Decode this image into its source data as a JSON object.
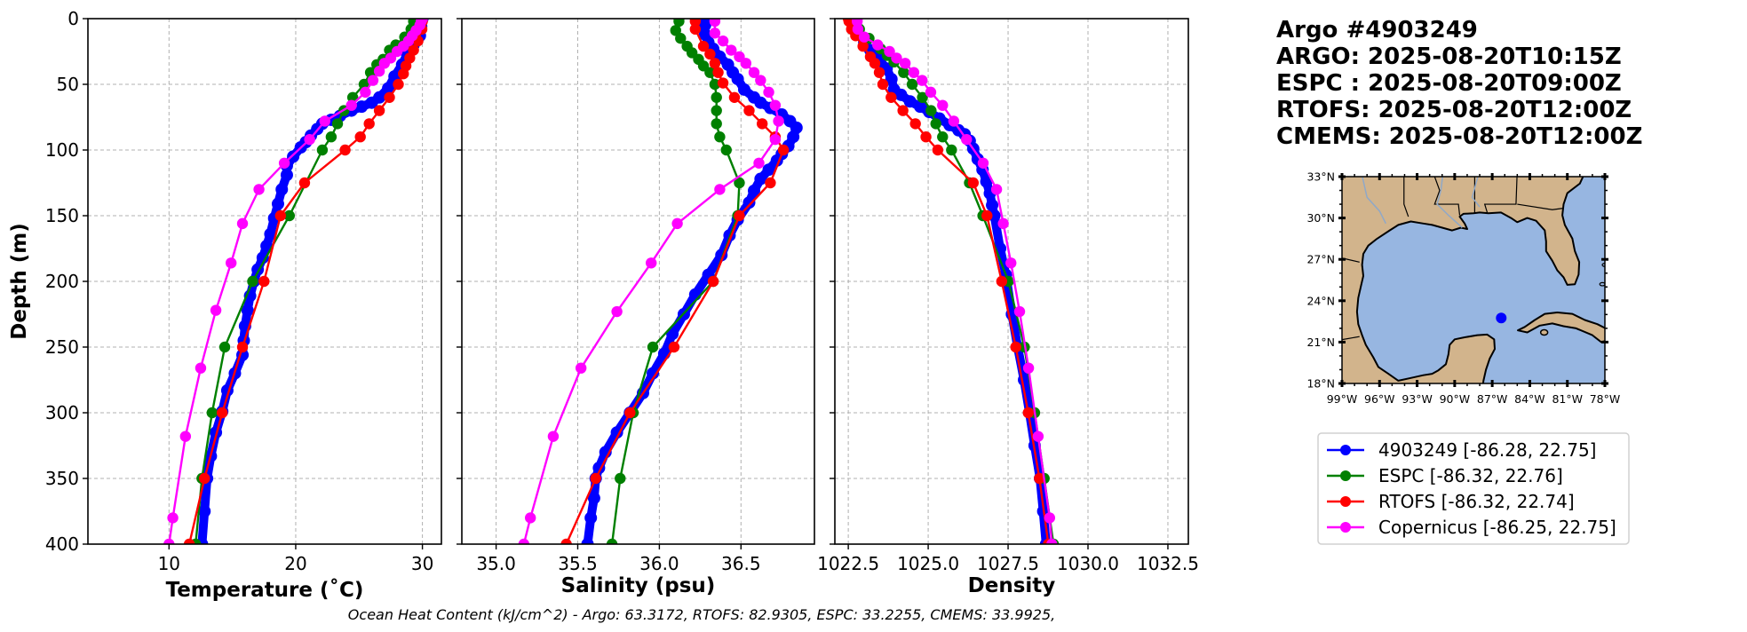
{
  "header": {
    "lines": [
      "Argo #4903249",
      "ARGO: 2025-08-20T10:15Z",
      "ESPC : 2025-08-20T09:00Z",
      "RTOFS: 2025-08-20T12:00Z",
      "CMEMS: 2025-08-20T12:00Z"
    ]
  },
  "caption": "Ocean Heat Content (kJ/cm^2) - Argo: 63.3172,  RTOFS: 82.9305,  ESPC: 33.2255,  CMEMS: 33.9925,",
  "legend": {
    "placement": "right-middle",
    "entries": [
      {
        "label": "4903249 [-86.28, 22.75]",
        "series": "argo"
      },
      {
        "label": "ESPC [-86.32, 22.76]",
        "series": "espc"
      },
      {
        "label": "RTOFS [-86.32, 22.74]",
        "series": "rtofs"
      },
      {
        "label": "Copernicus [-86.25, 22.75]",
        "series": "copernicus"
      }
    ]
  },
  "colors": {
    "argo": "#0000ff",
    "espc": "#008000",
    "rtofs": "#ff0000",
    "copernicus": "#ff00ff",
    "land": "#d2b48c",
    "ocean": "#97b6e1",
    "rivers": "#8fa8c8"
  },
  "map": {
    "lon_range": [
      -99,
      -78
    ],
    "lat_range": [
      18,
      33
    ],
    "lon_ticks": [
      -99,
      -96,
      -93,
      -90,
      -87,
      -84,
      -81,
      -78
    ],
    "lon_tick_labels": [
      "99°W",
      "96°W",
      "93°W",
      "90°W",
      "87°W",
      "84°W",
      "81°W",
      "78°W"
    ],
    "lat_ticks": [
      33,
      30,
      27,
      24,
      21,
      18
    ],
    "lat_tick_labels": [
      "33°N",
      "30°N",
      "27°N",
      "24°N",
      "21°N",
      "18°N"
    ],
    "float_position": {
      "lon": -86.28,
      "lat": 22.75
    }
  },
  "chart_data": [
    {
      "type": "line",
      "id": "temperature",
      "title": "",
      "xlabel": "Temperature (˚C)",
      "ylabel": "Depth (m)",
      "xlim": [
        3.6,
        31.5
      ],
      "ylim": [
        400,
        0
      ],
      "xticks": [
        10,
        20,
        30
      ],
      "xtick_labels": [
        "10",
        "20",
        "30"
      ],
      "yticks": [
        0,
        50,
        100,
        150,
        200,
        250,
        300,
        350,
        400
      ],
      "ytick_labels": [
        "0",
        "50",
        "100",
        "150",
        "200",
        "250",
        "300",
        "350",
        "400"
      ],
      "grid": true,
      "series": [
        {
          "name": "4903249",
          "key": "argo",
          "depth": [
            0,
            2,
            6,
            13,
            20,
            27,
            35,
            44,
            53,
            60,
            64,
            67,
            70,
            74,
            77,
            80,
            84,
            89,
            94,
            98,
            105,
            112,
            119,
            130,
            141,
            152,
            164,
            173,
            182,
            191,
            200,
            211,
            222,
            234,
            245,
            256,
            270,
            283,
            299,
            315,
            333,
            350,
            375,
            400
          ],
          "values": [
            30.0,
            29.9,
            29.9,
            29.8,
            29.3,
            28.8,
            28.4,
            27.8,
            27.3,
            26.6,
            26.0,
            25.2,
            24.4,
            23.5,
            22.8,
            22.1,
            21.7,
            21.2,
            20.8,
            20.4,
            19.8,
            19.3,
            19.3,
            18.9,
            18.6,
            18.3,
            18.0,
            17.7,
            17.4,
            17.0,
            16.7,
            16.4,
            16.2,
            16.0,
            15.9,
            15.8,
            15.2,
            14.6,
            14.2,
            13.7,
            13.3,
            13.0,
            12.8,
            12.6
          ]
        },
        {
          "name": "ESPC",
          "key": "espc",
          "depth": [
            0,
            2,
            8,
            14,
            20,
            24,
            31,
            35,
            41,
            50,
            60,
            70,
            80,
            90,
            100,
            150,
            200,
            250,
            300,
            350,
            400
          ],
          "values": [
            29.4,
            29.3,
            29.1,
            28.6,
            27.9,
            27.4,
            26.9,
            26.4,
            25.9,
            25.4,
            24.5,
            23.8,
            23.3,
            22.8,
            22.1,
            19.5,
            16.6,
            14.4,
            13.4,
            12.6,
            12.1
          ]
        },
        {
          "name": "RTOFS",
          "key": "rtofs",
          "depth": [
            0,
            2,
            8,
            17,
            24,
            30,
            36,
            42,
            50,
            60,
            70,
            80,
            90,
            100,
            125,
            150,
            200,
            250,
            300,
            350,
            400
          ],
          "values": [
            30.0,
            30.0,
            29.96,
            29.65,
            29.3,
            29.0,
            28.7,
            28.5,
            28.1,
            27.4,
            26.6,
            25.8,
            25.1,
            23.9,
            20.7,
            18.8,
            17.5,
            15.8,
            14.2,
            12.8,
            11.6
          ]
        },
        {
          "name": "Copernicus",
          "key": "copernicus",
          "depth": [
            0,
            2,
            5,
            9,
            13,
            17,
            21,
            25,
            30,
            34,
            40,
            47,
            56,
            66,
            78,
            92,
            110,
            130,
            156,
            186,
            222,
            266,
            318,
            380,
            400
          ],
          "values": [
            30.0,
            29.9,
            29.8,
            29.5,
            29.2,
            28.9,
            28.5,
            28.0,
            27.5,
            27.0,
            26.6,
            26.1,
            25.5,
            24.4,
            22.3,
            21.1,
            19.1,
            17.1,
            15.8,
            14.9,
            13.7,
            12.5,
            11.3,
            10.3,
            10.0
          ]
        }
      ]
    },
    {
      "type": "line",
      "id": "salinity",
      "title": "",
      "xlabel": "Salinity (psu)",
      "ylabel": "",
      "xlim": [
        34.79,
        36.95
      ],
      "ylim": [
        400,
        0
      ],
      "xticks": [
        35.0,
        35.5,
        36.0,
        36.5
      ],
      "xtick_labels": [
        "35.0",
        "35.5",
        "36.0",
        "36.5"
      ],
      "yticks": [
        0,
        50,
        100,
        150,
        200,
        250,
        300,
        350,
        400
      ],
      "grid": true,
      "series": [
        {
          "name": "4903249",
          "key": "argo",
          "depth": [
            0,
            5,
            12,
            18,
            23,
            29,
            35,
            41,
            46,
            54,
            60,
            64,
            68,
            73,
            78,
            83,
            90,
            97,
            103,
            108,
            115,
            122,
            131,
            140,
            153,
            165,
            180,
            195,
            210,
            225,
            240,
            255,
            270,
            285,
            300,
            315,
            330,
            342,
            350,
            365,
            380,
            400
          ],
          "values": [
            36.28,
            36.28,
            36.28,
            36.3,
            36.33,
            36.37,
            36.42,
            36.45,
            36.48,
            36.52,
            36.58,
            36.62,
            36.68,
            36.75,
            36.8,
            36.84,
            36.82,
            36.79,
            36.75,
            36.72,
            36.67,
            36.62,
            36.58,
            36.55,
            36.48,
            36.43,
            36.38,
            36.3,
            36.22,
            36.15,
            36.08,
            36.03,
            35.96,
            35.9,
            35.82,
            35.74,
            35.67,
            35.63,
            35.61,
            35.6,
            35.58,
            35.56
          ]
        },
        {
          "name": "ESPC",
          "key": "espc",
          "depth": [
            0,
            2,
            9,
            15,
            21,
            26,
            31,
            36,
            41,
            50,
            60,
            70,
            80,
            90,
            100,
            125,
            150,
            200,
            250,
            300,
            350,
            400
          ],
          "values": [
            36.12,
            36.12,
            36.1,
            36.13,
            36.17,
            36.2,
            36.24,
            36.27,
            36.31,
            36.34,
            36.35,
            36.35,
            36.35,
            36.37,
            36.41,
            36.49,
            36.48,
            36.33,
            35.96,
            35.84,
            35.76,
            35.71
          ]
        },
        {
          "name": "RTOFS",
          "key": "rtofs",
          "depth": [
            0,
            2,
            8,
            21,
            27,
            34,
            41,
            49,
            60,
            70,
            80,
            90,
            100,
            125,
            150,
            200,
            250,
            300,
            350,
            400
          ],
          "values": [
            36.22,
            36.22,
            36.22,
            36.27,
            36.31,
            36.34,
            36.36,
            36.39,
            36.46,
            36.55,
            36.63,
            36.71,
            36.76,
            36.68,
            36.49,
            36.33,
            36.09,
            35.82,
            35.61,
            35.43
          ]
        },
        {
          "name": "Copernicus",
          "key": "copernicus",
          "depth": [
            0,
            2,
            11,
            17,
            24,
            29,
            34,
            41,
            47,
            56,
            66,
            78,
            92,
            110,
            130,
            156,
            186,
            223,
            266,
            318,
            380,
            400
          ],
          "values": [
            36.34,
            36.34,
            36.34,
            36.39,
            36.44,
            36.49,
            36.53,
            36.58,
            36.62,
            36.67,
            36.71,
            36.73,
            36.71,
            36.61,
            36.37,
            36.11,
            35.95,
            35.74,
            35.52,
            35.35,
            35.21,
            35.17
          ]
        }
      ]
    },
    {
      "type": "line",
      "id": "density",
      "title": "",
      "xlabel": "Density",
      "ylabel": "",
      "xlim": [
        1022.08,
        1033.14
      ],
      "ylim": [
        400,
        0
      ],
      "xticks": [
        1022.5,
        1025.0,
        1027.5,
        1030.0,
        1032.5
      ],
      "xtick_labels": [
        "1022.5",
        "1025.0",
        "1027.5",
        "1030.0",
        "1032.5"
      ],
      "yticks": [
        0,
        50,
        100,
        150,
        200,
        250,
        300,
        350,
        400
      ],
      "grid": true,
      "series": [
        {
          "name": "4903249",
          "key": "argo",
          "depth": [
            0,
            2,
            10,
            18,
            24,
            31,
            38,
            46,
            54,
            58,
            63,
            67,
            71,
            76,
            81,
            85,
            88,
            93,
            99,
            107,
            115,
            124,
            133,
            142,
            150,
            175,
            195,
            225,
            250,
            275,
            300,
            325,
            350,
            375,
            400
          ],
          "values": [
            1022.73,
            1022.73,
            1022.78,
            1023.0,
            1023.19,
            1023.45,
            1023.7,
            1023.85,
            1023.93,
            1024.15,
            1024.43,
            1024.75,
            1025.03,
            1025.35,
            1025.67,
            1025.95,
            1026.14,
            1026.3,
            1026.41,
            1026.55,
            1026.7,
            1026.82,
            1026.93,
            1027.0,
            1027.07,
            1027.25,
            1027.43,
            1027.62,
            1027.8,
            1028.0,
            1028.17,
            1028.33,
            1028.5,
            1028.6,
            1028.69
          ]
        },
        {
          "name": "ESPC",
          "key": "espc",
          "depth": [
            0,
            2,
            8,
            15,
            23,
            28,
            33,
            41,
            50,
            60,
            70,
            80,
            90,
            100,
            125,
            150,
            200,
            250,
            300,
            350,
            400
          ],
          "values": [
            1022.73,
            1022.73,
            1022.85,
            1023.15,
            1023.51,
            1023.72,
            1023.93,
            1024.23,
            1024.5,
            1024.82,
            1025.09,
            1025.24,
            1025.45,
            1025.73,
            1026.29,
            1026.71,
            1027.51,
            1028.01,
            1028.33,
            1028.63,
            1028.92
          ]
        },
        {
          "name": "RTOFS",
          "key": "rtofs",
          "depth": [
            0,
            2,
            8,
            13,
            21,
            29,
            34,
            41,
            50,
            60,
            70,
            80,
            90,
            100,
            125,
            150,
            200,
            250,
            300,
            350,
            400
          ],
          "values": [
            1022.5,
            1022.52,
            1022.6,
            1022.73,
            1022.96,
            1023.19,
            1023.33,
            1023.47,
            1023.58,
            1023.84,
            1024.21,
            1024.6,
            1024.93,
            1025.3,
            1026.41,
            1026.84,
            1027.3,
            1027.74,
            1028.13,
            1028.48,
            1028.76
          ]
        },
        {
          "name": "Copernicus",
          "key": "copernicus",
          "depth": [
            0,
            2,
            8,
            14,
            20,
            25,
            30,
            34,
            41,
            47,
            56,
            66,
            78,
            92,
            110,
            130,
            156,
            186,
            223,
            266,
            318,
            380,
            400
          ],
          "values": [
            1022.78,
            1022.78,
            1022.8,
            1023.0,
            1023.42,
            1023.79,
            1024.01,
            1024.28,
            1024.55,
            1024.81,
            1025.08,
            1025.45,
            1025.8,
            1026.2,
            1026.72,
            1027.14,
            1027.35,
            1027.59,
            1027.86,
            1028.14,
            1028.44,
            1028.8,
            1028.87
          ]
        }
      ]
    }
  ]
}
